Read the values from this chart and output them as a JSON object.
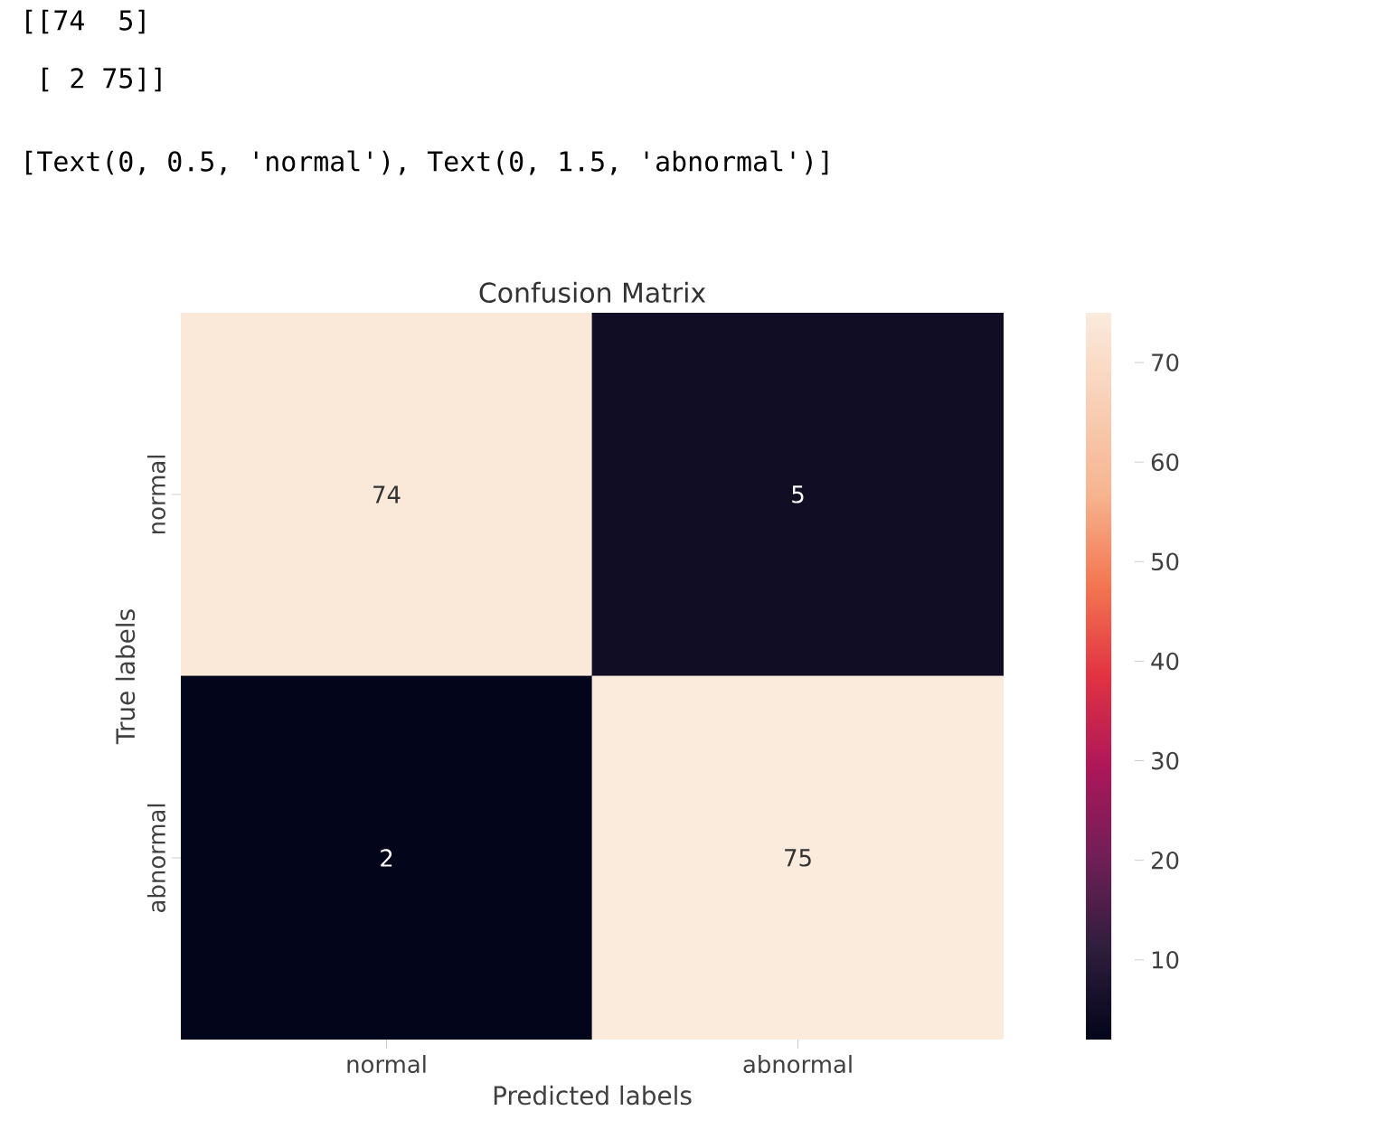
{
  "chart_data": {
    "type": "heatmap",
    "title": "Confusion Matrix",
    "xlabel": "Predicted labels",
    "ylabel": "True labels",
    "annotations": [
      "[[74  5]",
      " [ 2 75]]",
      "[Text(0, 0.5, 'normal'), Text(0, 1.5, 'abnormal')]"
    ],
    "categories": [
      "normal",
      "abnormal"
    ],
    "y_categories": [
      "normal",
      "abnormal"
    ],
    "cells": [
      [
        74,
        5
      ],
      [
        2,
        75
      ]
    ],
    "data_labels": true,
    "clim": [
      2,
      75
    ],
    "cticks": [
      10,
      20,
      30,
      40,
      50,
      60,
      70
    ]
  }
}
